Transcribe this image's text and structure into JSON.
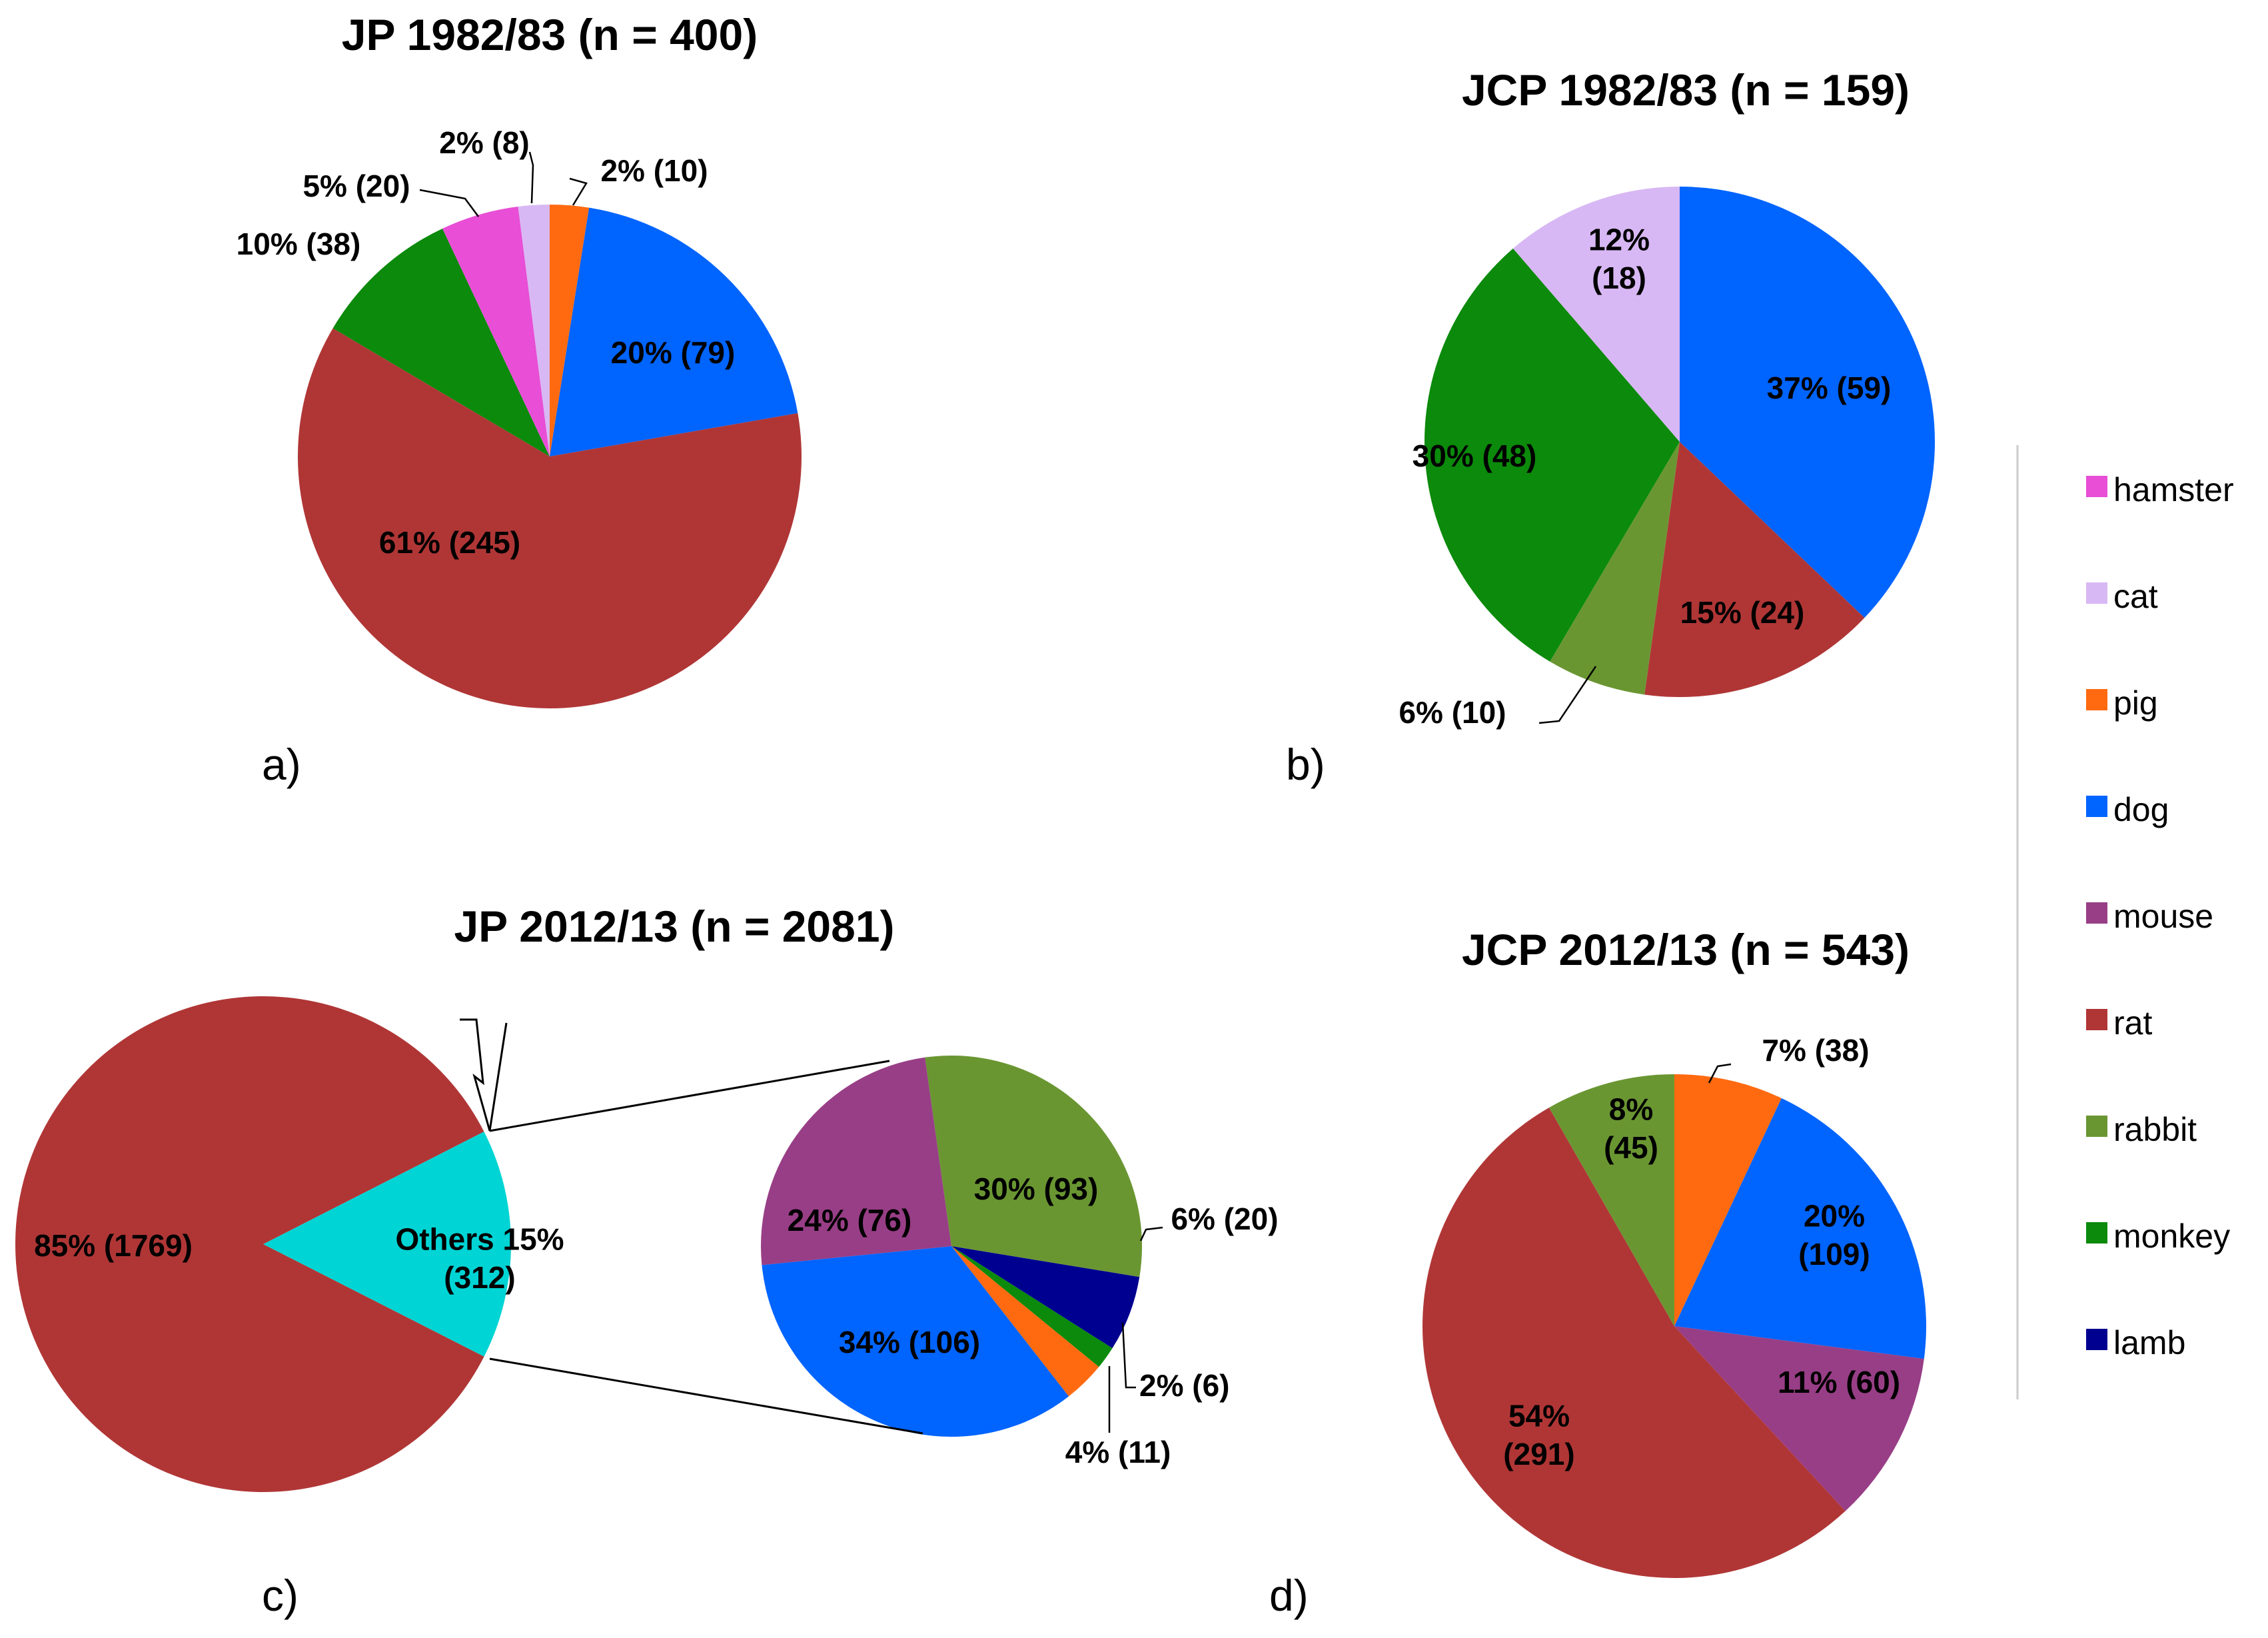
{
  "chart_data": [
    {
      "type": "pie",
      "panel": "a)",
      "title": "JP 1982/83 (n = 400)",
      "slices": [
        {
          "category": "pig",
          "label": "2% (10)",
          "value": 10,
          "color": "#ff6a10"
        },
        {
          "category": "dog",
          "label": "20% (79)",
          "value": 79,
          "color": "#0064ff"
        },
        {
          "category": "rat",
          "label": "61% (245)",
          "value": 245,
          "color": "#b03636"
        },
        {
          "category": "monkey",
          "label": "10% (38)",
          "value": 38,
          "color": "#0b8a0b"
        },
        {
          "category": "hamster",
          "label": "5% (20)",
          "value": 20,
          "color": "#e84ed6"
        },
        {
          "category": "cat",
          "label": "2% (8)",
          "value": 8,
          "color": "#d8b8f4"
        }
      ]
    },
    {
      "type": "pie",
      "panel": "b)",
      "title": "JCP 1982/83 (n = 159)",
      "slices": [
        {
          "category": "dog",
          "label": "37% (59)",
          "value": 59,
          "color": "#0064ff"
        },
        {
          "category": "rat",
          "label": "15% (24)",
          "value": 24,
          "color": "#b03636"
        },
        {
          "category": "rabbit",
          "label": "6% (10)",
          "value": 10,
          "color": "#6a9632"
        },
        {
          "category": "monkey",
          "label": "30% (48)",
          "value": 48,
          "color": "#0b8a0b"
        },
        {
          "category": "cat",
          "label": "12% (18)",
          "value": 18,
          "color": "#d8b8f4"
        }
      ]
    },
    {
      "type": "pie",
      "panel": "c)",
      "title": "JP 2012/13 (n = 2081)",
      "slices": [
        {
          "category": "Others",
          "label": "Others 15% (312)",
          "value": 312,
          "color": "#00d4d4"
        },
        {
          "category": "rat",
          "label": "85% (1769)",
          "value": 1769,
          "color": "#b03636"
        }
      ],
      "breakout": [
        {
          "category": "rabbit",
          "label": "30% (93)",
          "value": 93,
          "color": "#6a9632"
        },
        {
          "category": "lamb",
          "label": "6% (20)",
          "value": 20,
          "color": "#000090"
        },
        {
          "category": "monkey",
          "label": "2% (6)",
          "value": 6,
          "color": "#0b8a0b"
        },
        {
          "category": "pig",
          "label": "4% (11)",
          "value": 11,
          "color": "#ff6a10"
        },
        {
          "category": "dog",
          "label": "34% (106)",
          "value": 106,
          "color": "#0064ff"
        },
        {
          "category": "mouse",
          "label": "24% (76)",
          "value": 76,
          "color": "#983e86"
        }
      ]
    },
    {
      "type": "pie",
      "panel": "d)",
      "title": "JCP 2012/13 (n = 543)",
      "slices": [
        {
          "category": "pig",
          "label": "7% (38)",
          "value": 38,
          "color": "#ff6a10"
        },
        {
          "category": "dog",
          "label": "20% (109)",
          "value": 109,
          "color": "#0064ff"
        },
        {
          "category": "mouse",
          "label": "11% (60)",
          "value": 60,
          "color": "#983e86"
        },
        {
          "category": "rat",
          "label": "54% (291)",
          "value": 291,
          "color": "#b03636"
        },
        {
          "category": "rabbit",
          "label": "8% (45)",
          "value": 45,
          "color": "#6a9632"
        }
      ]
    }
  ],
  "legend": [
    {
      "label": "hamster",
      "color": "#e84ed6"
    },
    {
      "label": "cat",
      "color": "#d8b8f4"
    },
    {
      "label": "pig",
      "color": "#ff6a10"
    },
    {
      "label": "dog",
      "color": "#0064ff"
    },
    {
      "label": "mouse",
      "color": "#983e86"
    },
    {
      "label": "rat",
      "color": "#b03636"
    },
    {
      "label": "rabbit",
      "color": "#6a9632"
    },
    {
      "label": "monkey",
      "color": "#0b8a0b"
    },
    {
      "label": "lamb",
      "color": "#000090"
    }
  ]
}
